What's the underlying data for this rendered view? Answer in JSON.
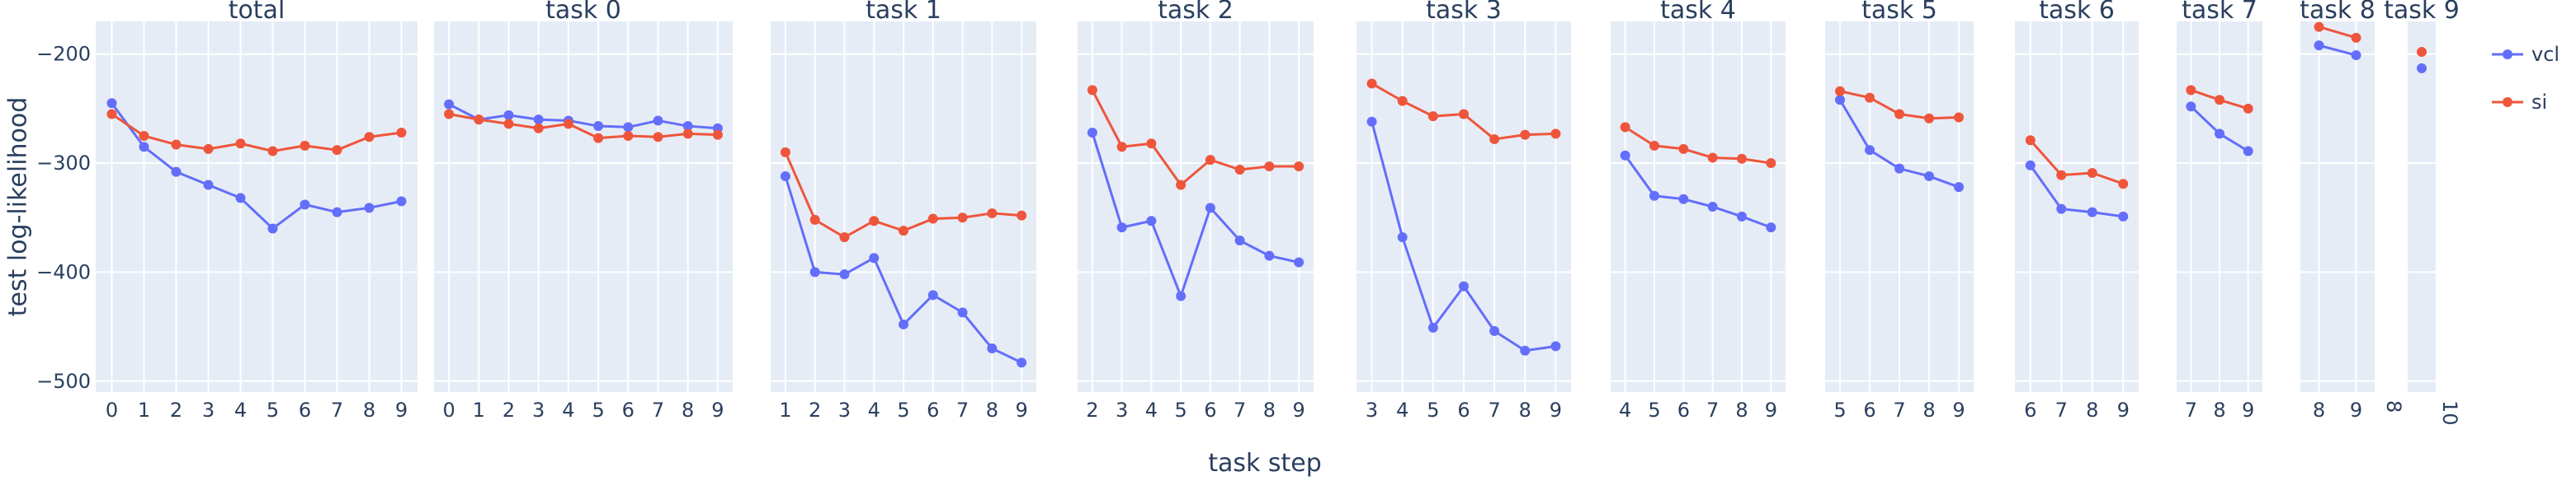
{
  "chart_data": {
    "type": "line",
    "layout": "small-multiples",
    "ylabel": "test log-likelihood",
    "xlabel": "task step",
    "ylim": [
      -510,
      -170
    ],
    "yticks": [
      -500,
      -400,
      -300,
      -200
    ],
    "ytick_labels": [
      "−500",
      "−400",
      "−300",
      "−200"
    ],
    "grid": true,
    "legend": {
      "placement": "right",
      "entries": [
        {
          "name": "vcl",
          "color": "#636efa"
        },
        {
          "name": "si",
          "color": "#ef553b"
        }
      ]
    },
    "panels": [
      {
        "title": "total",
        "x": [
          0,
          1,
          2,
          3,
          4,
          5,
          6,
          7,
          8,
          9
        ],
        "xlim": [
          -0.5,
          9.5
        ],
        "series": [
          {
            "name": "vcl",
            "values": [
              -245,
              -285,
              -308,
              -320,
              -332,
              -360,
              -338,
              -345,
              -341,
              -335
            ]
          },
          {
            "name": "si",
            "values": [
              -255,
              -275,
              -283,
              -287,
              -282,
              -289,
              -284,
              -288,
              -276,
              -272
            ]
          }
        ]
      },
      {
        "title": "task 0",
        "x": [
          0,
          1,
          2,
          3,
          4,
          5,
          6,
          7,
          8,
          9
        ],
        "xlim": [
          -0.5,
          9.5
        ],
        "series": [
          {
            "name": "vcl",
            "values": [
              -246,
              -260,
              -256,
              -260,
              -261,
              -266,
              -267,
              -261,
              -266,
              -268
            ]
          },
          {
            "name": "si",
            "values": [
              -255,
              -260,
              -264,
              -268,
              -264,
              -277,
              -275,
              -276,
              -273,
              -274
            ]
          }
        ]
      },
      {
        "title": "task 1",
        "x": [
          1,
          2,
          3,
          4,
          5,
          6,
          7,
          8,
          9
        ],
        "xlim": [
          0.5,
          9.5
        ],
        "series": [
          {
            "name": "vcl",
            "values": [
              -312,
              -400,
              -402,
              -387,
              -448,
              -421,
              -437,
              -470,
              -483
            ]
          },
          {
            "name": "si",
            "values": [
              -290,
              -352,
              -368,
              -353,
              -362,
              -351,
              -350,
              -346,
              -348
            ]
          }
        ]
      },
      {
        "title": "task 2",
        "x": [
          2,
          3,
          4,
          5,
          6,
          7,
          8,
          9
        ],
        "xlim": [
          1.5,
          9.5
        ],
        "series": [
          {
            "name": "vcl",
            "values": [
              -272,
              -359,
              -353,
              -422,
              -341,
              -371,
              -385,
              -391
            ]
          },
          {
            "name": "si",
            "values": [
              -233,
              -285,
              -282,
              -320,
              -297,
              -306,
              -303,
              -303
            ]
          }
        ]
      },
      {
        "title": "task 3",
        "x": [
          3,
          4,
          5,
          6,
          7,
          8,
          9
        ],
        "xlim": [
          2.5,
          9.5
        ],
        "series": [
          {
            "name": "vcl",
            "values": [
              -262,
              -368,
              -451,
              -413,
              -454,
              -472,
              -468
            ]
          },
          {
            "name": "si",
            "values": [
              -227,
              -243,
              -257,
              -255,
              -278,
              -274,
              -273
            ]
          }
        ]
      },
      {
        "title": "task 4",
        "x": [
          4,
          5,
          6,
          7,
          8,
          9
        ],
        "xlim": [
          3.5,
          9.5
        ],
        "series": [
          {
            "name": "vcl",
            "values": [
              -293,
              -330,
              -333,
              -340,
              -349,
              -359
            ]
          },
          {
            "name": "si",
            "values": [
              -267,
              -284,
              -287,
              -295,
              -296,
              -300
            ]
          }
        ]
      },
      {
        "title": "task 5",
        "x": [
          5,
          6,
          7,
          8,
          9
        ],
        "xlim": [
          4.5,
          9.5
        ],
        "series": [
          {
            "name": "vcl",
            "values": [
              -242,
              -288,
              -305,
              -312,
              -322
            ]
          },
          {
            "name": "si",
            "values": [
              -234,
              -240,
              -255,
              -259,
              -258
            ]
          }
        ]
      },
      {
        "title": "task 6",
        "x": [
          6,
          7,
          8,
          9
        ],
        "xlim": [
          5.5,
          9.5
        ],
        "series": [
          {
            "name": "vcl",
            "values": [
              -302,
              -342,
              -345,
              -349
            ]
          },
          {
            "name": "si",
            "values": [
              -279,
              -311,
              -309,
              -319
            ]
          }
        ]
      },
      {
        "title": "task 7",
        "x": [
          7,
          8,
          9
        ],
        "xlim": [
          6.5,
          9.5
        ],
        "series": [
          {
            "name": "vcl",
            "values": [
              -248,
              -273,
              -289
            ]
          },
          {
            "name": "si",
            "values": [
              -233,
              -242,
              -250
            ]
          }
        ]
      },
      {
        "title": "task 8",
        "x": [
          8,
          9
        ],
        "xlim": [
          7.5,
          9.5
        ],
        "series": [
          {
            "name": "vcl",
            "values": [
              -192,
              -201
            ]
          },
          {
            "name": "si",
            "values": [
              -175,
              -185
            ]
          }
        ]
      },
      {
        "title": "task 9",
        "x": [
          9
        ],
        "xlim": [
          8.5,
          9.5
        ],
        "xticks": [
          8,
          10
        ],
        "xtick_angle": 90,
        "series": [
          {
            "name": "vcl",
            "values": [
              -213
            ]
          },
          {
            "name": "si",
            "values": [
              -198
            ]
          }
        ]
      }
    ]
  }
}
